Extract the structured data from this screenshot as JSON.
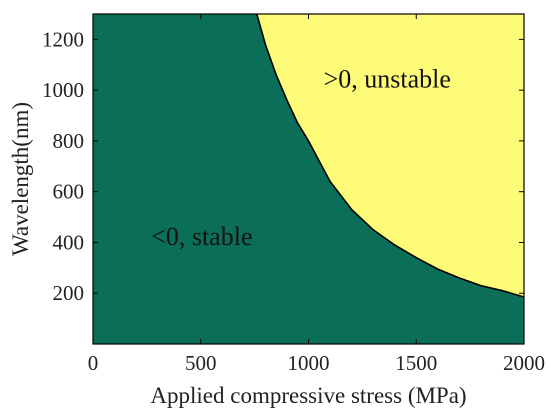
{
  "chart_data": {
    "type": "area",
    "title": "",
    "xlabel": "Applied compressive stress (MPa)",
    "ylabel": "Wavelength(nm)",
    "xlim": [
      0,
      2000
    ],
    "ylim": [
      0,
      1300
    ],
    "x_ticks": [
      0,
      500,
      1000,
      1500,
      2000
    ],
    "y_ticks": [
      200,
      400,
      600,
      800,
      1000,
      1200
    ],
    "grid": false,
    "regions": [
      {
        "label": "<0, stable",
        "color": "#0b6e58"
      },
      {
        "label": ">0, unstable",
        "color": "#fdfb78"
      }
    ],
    "boundary": {
      "x": [
        760,
        800,
        850,
        900,
        950,
        1000,
        1100,
        1200,
        1300,
        1400,
        1500,
        1600,
        1700,
        1800,
        1900,
        2000
      ],
      "y": [
        1300,
        1180,
        1060,
        960,
        870,
        800,
        640,
        530,
        450,
        390,
        340,
        295,
        260,
        230,
        210,
        185
      ]
    }
  }
}
